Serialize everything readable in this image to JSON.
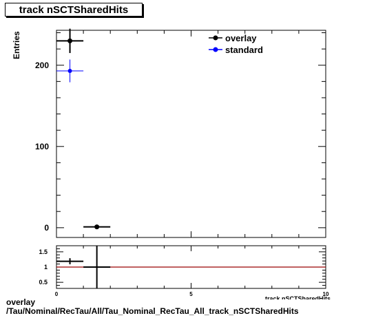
{
  "title": "track nSCTSharedHits",
  "footer": {
    "line1": "overlay",
    "line2": "/Tau/Nominal/RecTau/All/Tau_Nominal_RecTau_All_track_nSCTSharedHits"
  },
  "colors": {
    "overlay": "#000000",
    "standard": "#0000ff",
    "ratio_line": "#990000"
  },
  "chart_data": [
    {
      "type": "scatter",
      "title": "track nSCTSharedHits",
      "xlabel": "track nSCTSharedHits",
      "ylabel": "Entries",
      "xlim": [
        0,
        10
      ],
      "ylim": [
        -12,
        243
      ],
      "yticks": [
        0,
        100,
        200
      ],
      "legend": "top-right",
      "series": [
        {
          "name": "overlay",
          "color": "#000000",
          "points": [
            {
              "x": 0.5,
              "y": 230,
              "xerr": 0.5,
              "yerr": 15
            },
            {
              "x": 1.5,
              "y": 1,
              "xerr": 0.5,
              "yerr": 1
            }
          ]
        },
        {
          "name": "standard",
          "color": "#0000ff",
          "points": [
            {
              "x": 0.5,
              "y": 193,
              "xerr": 0.5,
              "yerr": 14
            }
          ]
        }
      ]
    },
    {
      "type": "scatter",
      "xlabel": "track nSCTSharedHits",
      "xlim": [
        0,
        10
      ],
      "ylim": [
        0.3,
        1.7
      ],
      "xticks": [
        0,
        5,
        10
      ],
      "yticks": [
        0.5,
        1,
        1.5
      ],
      "reference_line": 1,
      "series": [
        {
          "name": "ratio",
          "color": "#000000",
          "points": [
            {
              "x": 0.5,
              "y": 1.19,
              "xerr": 0.5,
              "yerr": 0.1
            },
            {
              "x": 1.5,
              "y": 1.0,
              "xerr": 0.5,
              "yerr": 1.5
            }
          ]
        }
      ]
    }
  ]
}
